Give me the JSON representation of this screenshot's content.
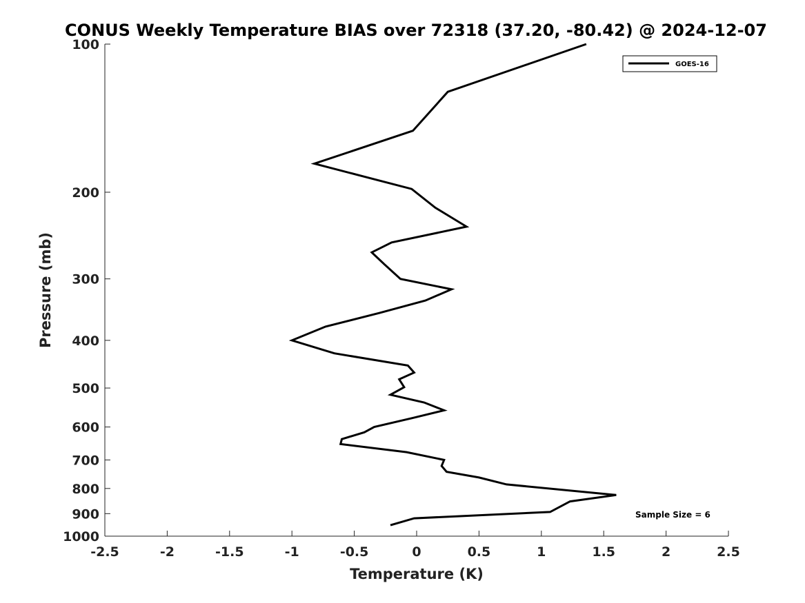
{
  "chart_data": {
    "type": "line",
    "title": "CONUS Weekly Temperature BIAS over 72318 (37.20, -80.42) @ 2024-12-07",
    "xlabel": "Temperature (K)",
    "ylabel": "Pressure (mb)",
    "xlim": [
      -2.5,
      2.5
    ],
    "ylim": [
      100,
      1000
    ],
    "y_scale": "log",
    "y_reversed": true,
    "x_ticks": [
      -2.5,
      -2,
      -1.5,
      -1,
      -0.5,
      0,
      0.5,
      1,
      1.5,
      2,
      2.5
    ],
    "x_tick_labels": [
      "-2.5",
      "-2",
      "-1.5",
      "-1",
      "-0.5",
      "0",
      "0.5",
      "1",
      "1.5",
      "2",
      "2.5"
    ],
    "y_ticks": [
      100,
      200,
      300,
      400,
      500,
      600,
      700,
      800,
      900,
      1000
    ],
    "y_tick_labels": [
      "100",
      "200",
      "300",
      "400",
      "500",
      "600",
      "700",
      "800",
      "900",
      "1000"
    ],
    "grid": false,
    "legend_position": "top-right",
    "annotation": "Sample Size = 6",
    "series": [
      {
        "name": "GOES-16",
        "color": "#000000",
        "points": [
          [
            1.36,
            100
          ],
          [
            0.25,
            125
          ],
          [
            -0.03,
            150
          ],
          [
            -0.82,
            175
          ],
          [
            -0.04,
            197
          ],
          [
            0.15,
            215
          ],
          [
            0.4,
            235
          ],
          [
            -0.2,
            253
          ],
          [
            -0.36,
            265
          ],
          [
            -0.26,
            280
          ],
          [
            -0.13,
            300
          ],
          [
            0.28,
            315
          ],
          [
            0.07,
            332
          ],
          [
            -0.3,
            352
          ],
          [
            -0.73,
            375
          ],
          [
            -1.0,
            400
          ],
          [
            -0.66,
            425
          ],
          [
            -0.07,
            450
          ],
          [
            -0.02,
            465
          ],
          [
            -0.14,
            480
          ],
          [
            -0.1,
            498
          ],
          [
            -0.21,
            516
          ],
          [
            0.06,
            535
          ],
          [
            0.22,
            555
          ],
          [
            -0.03,
            575
          ],
          [
            -0.34,
            600
          ],
          [
            -0.42,
            615
          ],
          [
            -0.6,
            635
          ],
          [
            -0.61,
            650
          ],
          [
            -0.08,
            675
          ],
          [
            0.22,
            700
          ],
          [
            0.2,
            720
          ],
          [
            0.24,
            740
          ],
          [
            0.5,
            760
          ],
          [
            0.72,
            785
          ],
          [
            1.6,
            825
          ],
          [
            1.23,
            850
          ],
          [
            1.07,
            893
          ],
          [
            -0.02,
            920
          ],
          [
            -0.21,
            950
          ]
        ]
      }
    ]
  }
}
